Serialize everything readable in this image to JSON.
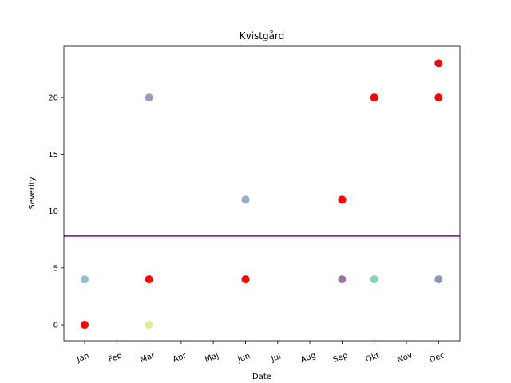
{
  "chart_data": {
    "type": "scatter",
    "title": "Kvistgård",
    "xlabel": "Date",
    "ylabel": "Severity",
    "x_categories": [
      "Jan",
      "Feb",
      "Mar",
      "Apr",
      "Maj",
      "Jun",
      "Jul",
      "Aug",
      "Sep",
      "Okt",
      "Nov",
      "Dec"
    ],
    "ylim": [
      -1.4,
      24.5
    ],
    "y_ticks": [
      0,
      5,
      10,
      15,
      20
    ],
    "hline": {
      "value": 7.8,
      "color": "#800080"
    },
    "points": [
      {
        "x": "Jan",
        "y": 4,
        "color": "#5f9ea8"
      },
      {
        "x": "Jan",
        "y": 0,
        "color": "#ff0000"
      },
      {
        "x": "Mar",
        "y": 20,
        "color": "#7b5ea7"
      },
      {
        "x": "Mar",
        "y": 4,
        "color": "#ff0000"
      },
      {
        "x": "Mar",
        "y": 0,
        "color": "#c7e55a"
      },
      {
        "x": "Jun",
        "y": 11,
        "color": "#5b84b1"
      },
      {
        "x": "Jun",
        "y": 4,
        "color": "#ff0000"
      },
      {
        "x": "Sep",
        "y": 11,
        "color": "#ff0000"
      },
      {
        "x": "Sep",
        "y": 4,
        "color": "#6a2c70"
      },
      {
        "x": "Okt",
        "y": 20,
        "color": "#ff0000"
      },
      {
        "x": "Okt",
        "y": 4,
        "color": "#3dbb9a"
      },
      {
        "x": "Dec",
        "y": 23,
        "color": "#ff0000"
      },
      {
        "x": "Dec",
        "y": 20,
        "color": "#ff0000"
      },
      {
        "x": "Dec",
        "y": 4,
        "color": "#4b5ba1"
      }
    ],
    "grid": false,
    "x_tick_rotation": "rotated ~20 degrees"
  }
}
